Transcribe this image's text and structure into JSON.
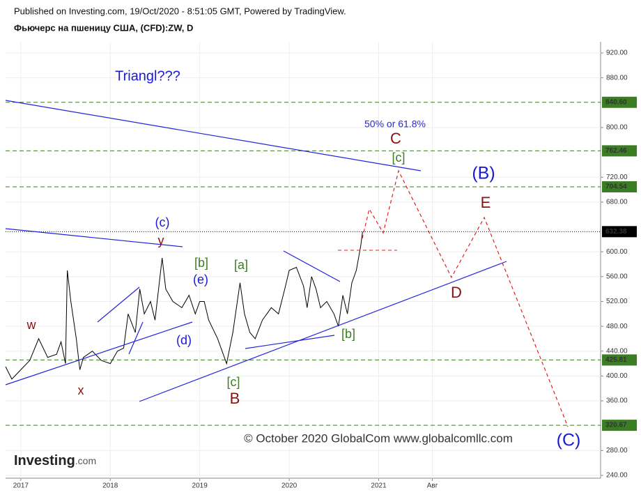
{
  "header": {
    "published": "Published on Investing.com, 19/Oct/2020 - 8:51:05 GMT, Powered by TradingView.",
    "symbol": "Фьючерс на пшеницу США, (CFD):ZW, D"
  },
  "chart_data": {
    "type": "line",
    "series": [
      {
        "name": "ZW",
        "color": "#000000",
        "x": [
          2016.83,
          2016.9,
          2017.0,
          2017.1,
          2017.2,
          2017.3,
          2017.4,
          2017.45,
          2017.5,
          2017.52,
          2017.56,
          2017.62,
          2017.66,
          2017.7,
          2017.8,
          2017.9,
          2018.0,
          2018.08,
          2018.15,
          2018.2,
          2018.28,
          2018.33,
          2018.38,
          2018.45,
          2018.5,
          2018.58,
          2018.62,
          2018.7,
          2018.8,
          2018.88,
          2018.95,
          2019.0,
          2019.05,
          2019.1,
          2019.2,
          2019.3,
          2019.37,
          2019.45,
          2019.5,
          2019.56,
          2019.62,
          2019.7,
          2019.8,
          2019.88,
          2019.95,
          2020.0,
          2020.08,
          2020.16,
          2020.2,
          2020.25,
          2020.3,
          2020.35,
          2020.42,
          2020.5,
          2020.55,
          2020.6,
          2020.65,
          2020.7,
          2020.75,
          2020.8,
          2020.82
        ],
        "values": [
          415,
          395,
          410,
          425,
          460,
          430,
          435,
          455,
          420,
          570,
          520,
          460,
          410,
          430,
          440,
          425,
          420,
          440,
          445,
          500,
          470,
          540,
          500,
          520,
          490,
          590,
          540,
          520,
          510,
          530,
          500,
          520,
          520,
          490,
          460,
          420,
          470,
          550,
          500,
          470,
          460,
          490,
          510,
          500,
          540,
          570,
          575,
          545,
          510,
          560,
          540,
          510,
          520,
          500,
          480,
          530,
          500,
          550,
          570,
          610,
          632.38
        ]
      }
    ],
    "last_price": 632.38,
    "levels": [
      {
        "value": 840.6,
        "label": "840.60"
      },
      {
        "value": 762.46,
        "label": "762.46"
      },
      {
        "value": 704.54,
        "label": "704.54"
      },
      {
        "value": 425.81,
        "label": "425.81"
      },
      {
        "value": 320.67,
        "label": "320.67"
      }
    ],
    "level_color": "#3a7d22",
    "xlim": [
      2016.83,
      2023.48
    ],
    "xticks": [
      2017,
      2018,
      2019,
      2020,
      2021,
      {
        "value": 2021.6,
        "label": "Авг"
      }
    ],
    "ylim": [
      240,
      920
    ],
    "yticks": [
      {
        "value": 920,
        "label": "920.00"
      },
      {
        "value": 880,
        "label": "880.00"
      },
      {
        "value": 800,
        "label": "800.00"
      },
      {
        "value": 720,
        "label": "720.00"
      },
      {
        "value": 680,
        "label": "680.00"
      },
      {
        "value": 600,
        "label": "600.00"
      },
      {
        "value": 560,
        "label": "560.00"
      },
      {
        "value": 520,
        "label": "520.00"
      },
      {
        "value": 480,
        "label": "480.00"
      },
      {
        "value": 440,
        "label": "440.00"
      },
      {
        "value": 400,
        "label": "400.00"
      },
      {
        "value": 360,
        "label": "360.00"
      },
      {
        "value": 280,
        "label": "280.00"
      },
      {
        "value": 240,
        "label": "240.00"
      }
    ],
    "grid": true,
    "annotations": [
      {
        "text": "Triangl???",
        "color": "#1a1ad0"
      },
      {
        "text": "50% or 61.8%",
        "color": "#2a2ad0"
      },
      {
        "text": "C",
        "color": "#8b1010"
      },
      {
        "text": "[c]",
        "color": "#3a7d22"
      },
      {
        "text": "(B)",
        "color": "#1a1ad0"
      },
      {
        "text": "E",
        "color": "#8b1010"
      },
      {
        "text": "D",
        "color": "#8b1010"
      },
      {
        "text": "(C)",
        "color": "#1a1ad0"
      },
      {
        "text": "(c)",
        "color": "#1a1ad0"
      },
      {
        "text": "y",
        "color": "#8b1010"
      },
      {
        "text": "[b]",
        "color": "#3a7d22"
      },
      {
        "text": "(e)",
        "color": "#1a1ad0"
      },
      {
        "text": "[a]",
        "color": "#3a7d22"
      },
      {
        "text": "(d)",
        "color": "#1a1ad0"
      },
      {
        "text": "w",
        "color": "#8b1010"
      },
      {
        "text": "x",
        "color": "#8b1010"
      },
      {
        "text": "[c]",
        "color": "#3a7d22"
      },
      {
        "text": "B",
        "color": "#8b1010"
      },
      {
        "text": "[b]",
        "color": "#3a7d22"
      },
      {
        "text": "© October 2020 GlobalCom www.globalcomllc.com",
        "color": "#333333"
      }
    ],
    "logo": {
      "main": "Investing",
      "suffix": ".com"
    }
  }
}
